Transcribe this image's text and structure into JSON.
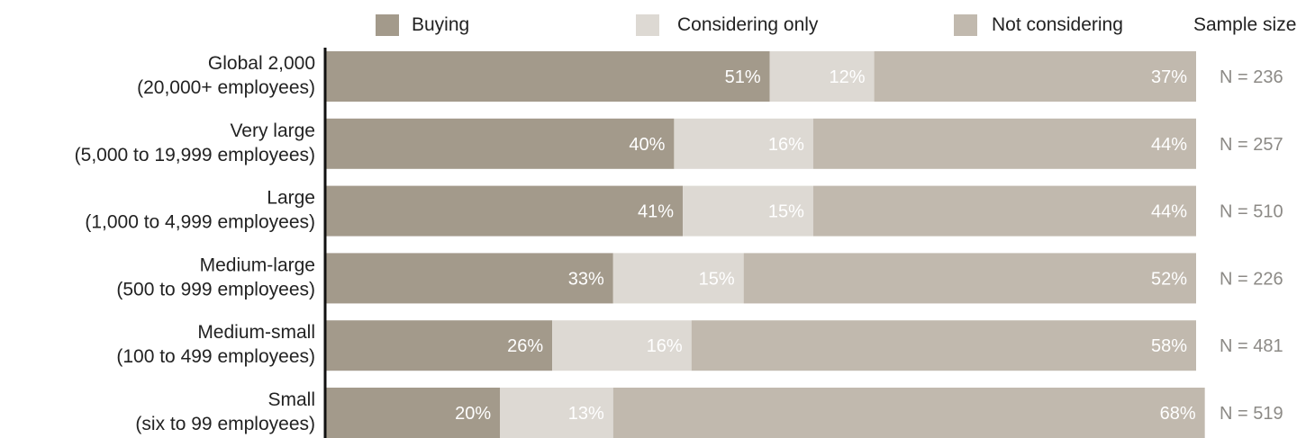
{
  "legend": {
    "buying": "Buying",
    "considering": "Considering only",
    "not_considering": "Not considering",
    "sample_size_header": "Sample size"
  },
  "colors": {
    "buying": "#a39a8b",
    "considering": "#ddd9d3",
    "not_considering": "#c1b9ae",
    "axis": "#111111",
    "sample_text": "#8c8a86",
    "bar_label": "#ffffff"
  },
  "chart_data": {
    "type": "bar",
    "orientation": "horizontal",
    "stacked": true,
    "categories": [
      [
        "Global 2,000",
        "(20,000+ employees)"
      ],
      [
        "Very large",
        "(5,000 to 19,999 employees)"
      ],
      [
        "Large",
        "(1,000 to 4,999 employees)"
      ],
      [
        "Medium-large",
        "(500 to 999 employees)"
      ],
      [
        "Medium-small",
        "(100 to 499 employees)"
      ],
      [
        "Small",
        "(six to 99 employees)"
      ]
    ],
    "series": [
      {
        "name": "Buying",
        "values": [
          51,
          40,
          41,
          33,
          26,
          20
        ]
      },
      {
        "name": "Considering only",
        "values": [
          12,
          16,
          15,
          15,
          16,
          13
        ]
      },
      {
        "name": "Not considering",
        "values": [
          37,
          44,
          44,
          52,
          58,
          68
        ]
      }
    ],
    "data_labels": [
      [
        "51%",
        "12%",
        "37%"
      ],
      [
        "40%",
        "16%",
        "44%"
      ],
      [
        "41%",
        "15%",
        "44%"
      ],
      [
        "33%",
        "15%",
        "52%"
      ],
      [
        "26%",
        "16%",
        "58%"
      ],
      [
        "20%",
        "13%",
        "68%"
      ]
    ],
    "sample_sizes": [
      "N = 236",
      "N = 257",
      "N = 510",
      "N = 226",
      "N = 481",
      "N = 519"
    ],
    "xlim": [
      0,
      100
    ],
    "unit": "%",
    "grid": false,
    "legend_position": "top"
  }
}
